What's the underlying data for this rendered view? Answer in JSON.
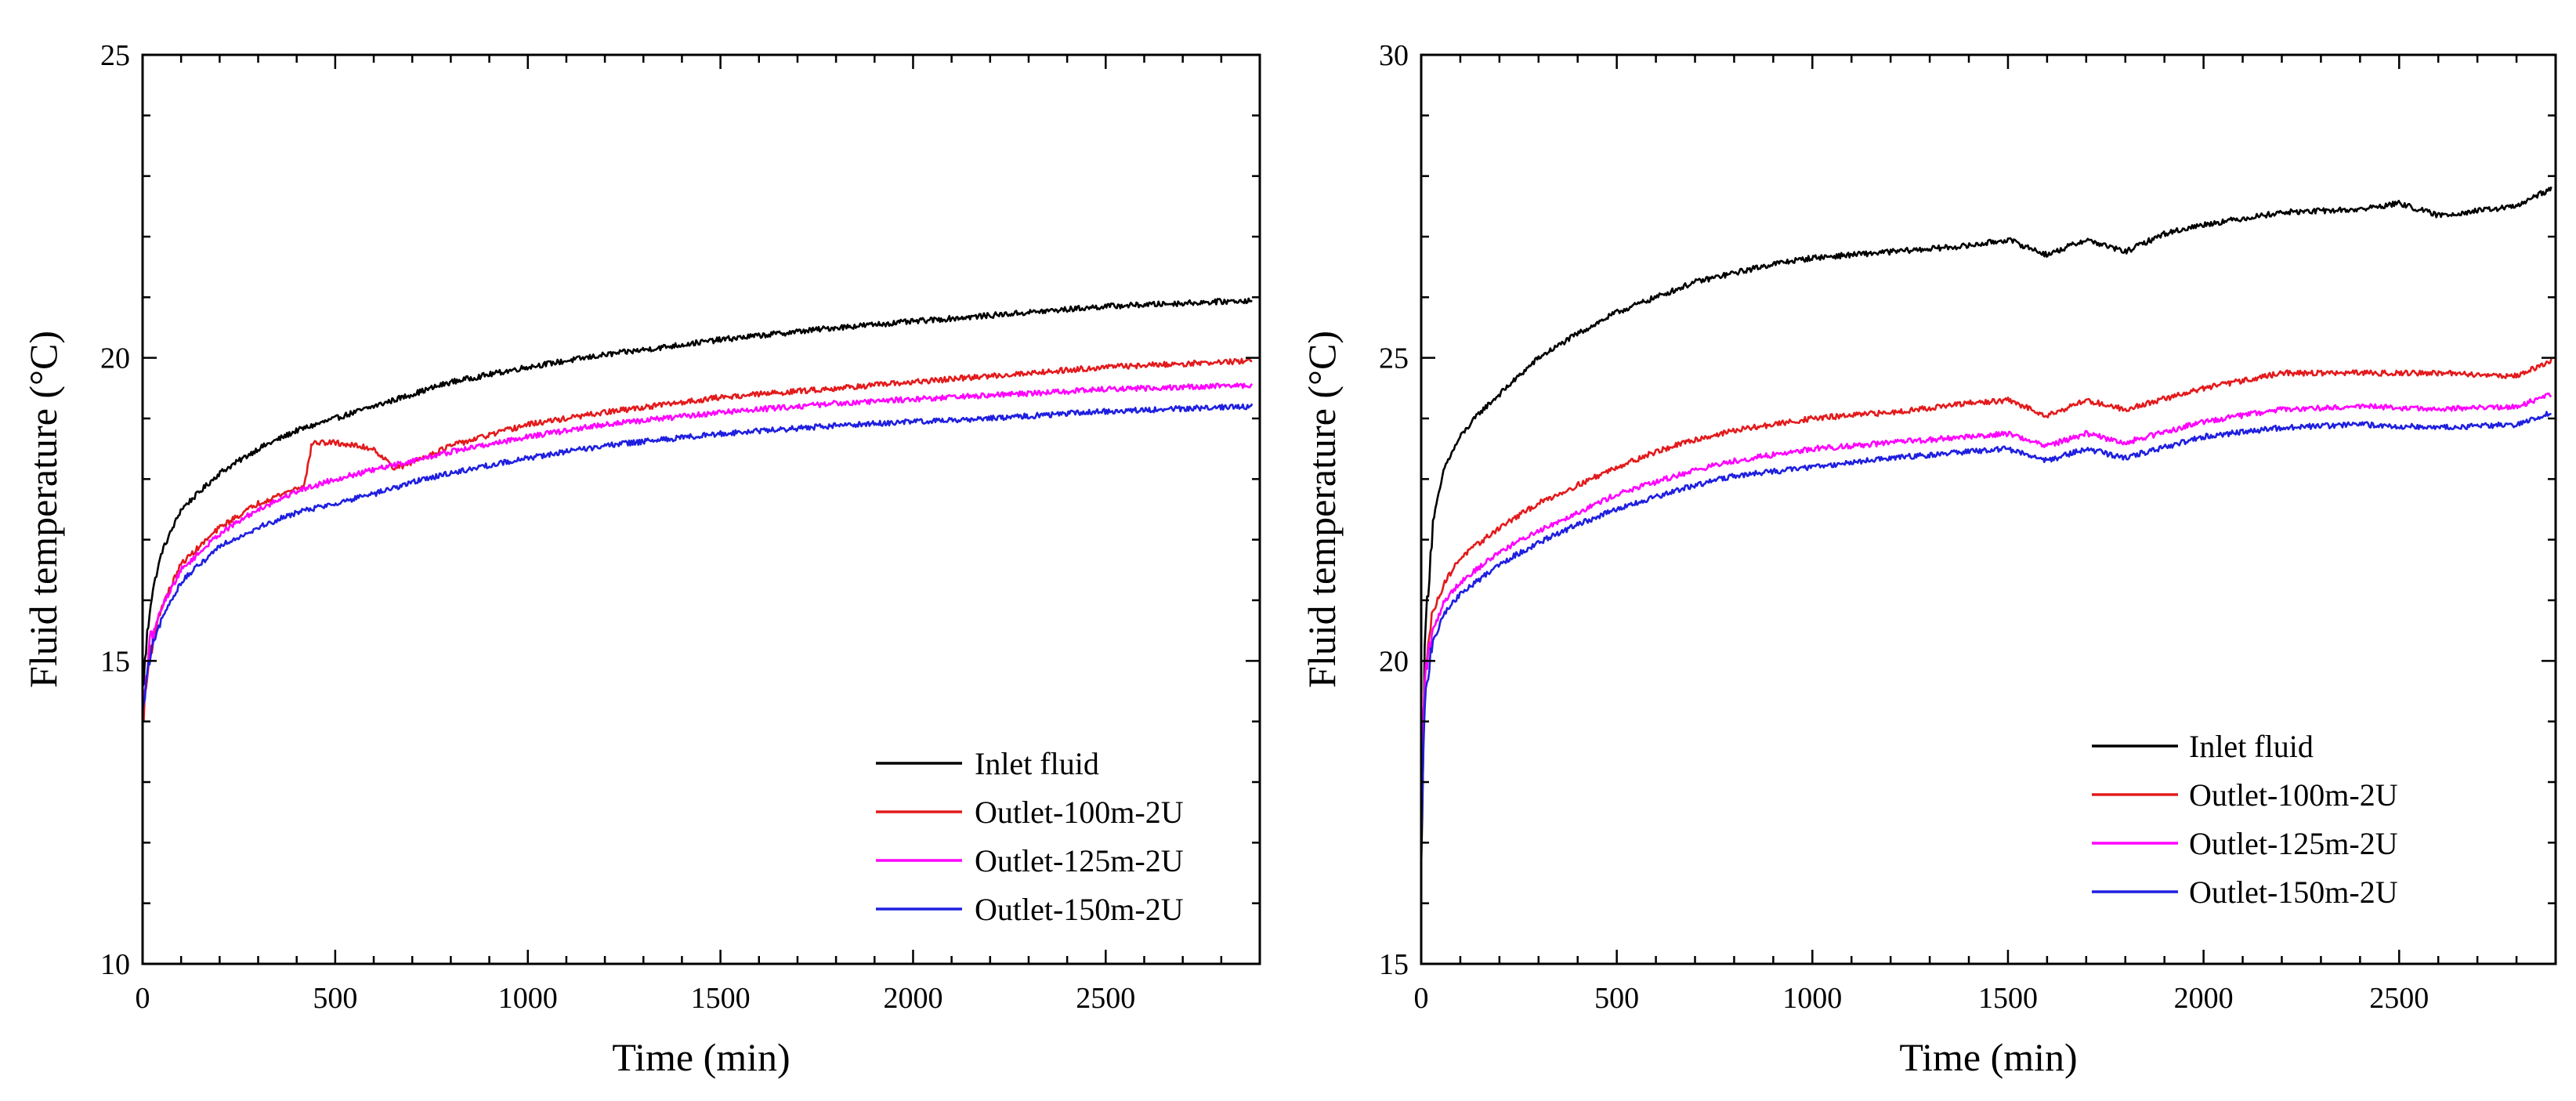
{
  "colors": {
    "inlet": "#000000",
    "outlet_100": "#e31a1c",
    "outlet_125": "#ff00ff",
    "outlet_150": "#1f1fe0"
  },
  "chart_data": [
    {
      "type": "line",
      "xlabel": "Time (min)",
      "ylabel": "Fluid temperature (°C)",
      "xlim": [
        0,
        2900
      ],
      "ylim": [
        10,
        25
      ],
      "xticks": [
        "0",
        "500",
        "1000",
        "1500",
        "2000",
        "2500"
      ],
      "yticks": [
        "10",
        "15",
        "20",
        "25"
      ],
      "legend_position": "bottom-right",
      "series": [
        {
          "name": "Inlet fluid",
          "color": "#000000",
          "x": [
            0,
            20,
            50,
            100,
            200,
            300,
            400,
            500,
            600,
            700,
            800,
            1000,
            1200,
            1500,
            1800,
            2000,
            2200,
            2500,
            2880
          ],
          "y": [
            14.5,
            16.0,
            16.8,
            17.5,
            18.1,
            18.5,
            18.8,
            19.0,
            19.2,
            19.4,
            19.6,
            19.85,
            20.05,
            20.3,
            20.5,
            20.6,
            20.7,
            20.85,
            20.95
          ]
        },
        {
          "name": "Outlet-100m-2U",
          "color": "#e31a1c",
          "x": [
            0,
            20,
            50,
            100,
            200,
            300,
            420,
            440,
            500,
            600,
            650,
            670,
            800,
            1000,
            1200,
            1500,
            1800,
            2000,
            2200,
            2500,
            2880
          ],
          "y": [
            14.0,
            15.2,
            15.9,
            16.6,
            17.2,
            17.6,
            17.9,
            18.6,
            18.6,
            18.5,
            18.2,
            18.2,
            18.55,
            18.9,
            19.1,
            19.35,
            19.5,
            19.6,
            19.7,
            19.85,
            19.95
          ]
        },
        {
          "name": "Outlet-125m-2U",
          "color": "#ff00ff",
          "x": [
            0,
            20,
            50,
            100,
            200,
            300,
            400,
            500,
            600,
            700,
            800,
            1000,
            1200,
            1500,
            1800,
            2000,
            2200,
            2500,
            2880
          ],
          "y": [
            14.2,
            15.3,
            15.9,
            16.5,
            17.1,
            17.5,
            17.8,
            18.0,
            18.15,
            18.3,
            18.45,
            18.7,
            18.9,
            19.1,
            19.25,
            19.32,
            19.38,
            19.48,
            19.55
          ]
        },
        {
          "name": "Outlet-150m-2U",
          "color": "#1f1fe0",
          "x": [
            0,
            20,
            50,
            100,
            200,
            300,
            400,
            500,
            600,
            700,
            800,
            1000,
            1200,
            1500,
            1800,
            2000,
            2200,
            2500,
            2880
          ],
          "y": [
            14.1,
            15.1,
            15.7,
            16.3,
            16.9,
            17.2,
            17.45,
            17.6,
            17.75,
            17.95,
            18.1,
            18.35,
            18.55,
            18.75,
            18.88,
            18.95,
            19.0,
            19.12,
            19.2
          ]
        }
      ]
    },
    {
      "type": "line",
      "xlabel": "Time (min)",
      "ylabel": "Fluid temperature (°C)",
      "xlim": [
        0,
        2900
      ],
      "ylim": [
        15,
        30
      ],
      "xticks": [
        "0",
        "500",
        "1000",
        "1500",
        "2000",
        "2500"
      ],
      "yticks": [
        "15",
        "20",
        "25",
        "30"
      ],
      "legend_position": "bottom-right",
      "series": [
        {
          "name": "Inlet fluid",
          "color": "#000000",
          "x": [
            0,
            10,
            30,
            60,
            100,
            150,
            200,
            300,
            400,
            500,
            600,
            700,
            800,
            900,
            1000,
            1200,
            1400,
            1500,
            1600,
            1700,
            1800,
            1900,
            2000,
            2200,
            2400,
            2500,
            2600,
            2800,
            2890
          ],
          "y": [
            16.5,
            20.5,
            22.3,
            23.2,
            23.7,
            24.1,
            24.4,
            25.0,
            25.4,
            25.75,
            26.0,
            26.25,
            26.4,
            26.55,
            26.65,
            26.75,
            26.85,
            26.95,
            26.7,
            26.95,
            26.75,
            27.05,
            27.2,
            27.4,
            27.45,
            27.55,
            27.35,
            27.5,
            27.8
          ]
        },
        {
          "name": "Outlet-100m-2U",
          "color": "#e31a1c",
          "x": [
            0,
            10,
            30,
            60,
            100,
            200,
            300,
            400,
            500,
            600,
            700,
            800,
            1000,
            1200,
            1400,
            1500,
            1600,
            1700,
            1800,
            2000,
            2200,
            2400,
            2600,
            2800,
            2890
          ],
          "y": [
            18.0,
            20.0,
            20.8,
            21.3,
            21.7,
            22.2,
            22.6,
            22.9,
            23.2,
            23.45,
            23.65,
            23.8,
            24.0,
            24.1,
            24.25,
            24.3,
            24.05,
            24.3,
            24.15,
            24.5,
            24.75,
            24.75,
            24.75,
            24.7,
            24.95
          ]
        },
        {
          "name": "Outlet-125m-2U",
          "color": "#ff00ff",
          "x": [
            0,
            10,
            30,
            60,
            100,
            200,
            300,
            400,
            500,
            600,
            700,
            800,
            1000,
            1200,
            1400,
            1500,
            1600,
            1700,
            1800,
            2000,
            2200,
            2400,
            2600,
            2800,
            2890
          ],
          "y": [
            18.2,
            19.8,
            20.5,
            21.0,
            21.3,
            21.8,
            22.15,
            22.45,
            22.75,
            22.95,
            23.15,
            23.3,
            23.5,
            23.6,
            23.7,
            23.75,
            23.55,
            23.75,
            23.6,
            23.95,
            24.15,
            24.2,
            24.15,
            24.2,
            24.4
          ]
        },
        {
          "name": "Outlet-150m-2U",
          "color": "#1f1fe0",
          "x": [
            0,
            10,
            30,
            60,
            100,
            200,
            300,
            400,
            500,
            600,
            700,
            800,
            1000,
            1200,
            1400,
            1500,
            1600,
            1700,
            1800,
            2000,
            2200,
            2400,
            2600,
            2800,
            2890
          ],
          "y": [
            17.0,
            19.5,
            20.3,
            20.8,
            21.1,
            21.6,
            21.95,
            22.25,
            22.5,
            22.7,
            22.9,
            23.05,
            23.2,
            23.35,
            23.45,
            23.5,
            23.3,
            23.5,
            23.35,
            23.7,
            23.85,
            23.9,
            23.85,
            23.9,
            24.1
          ]
        }
      ]
    }
  ]
}
